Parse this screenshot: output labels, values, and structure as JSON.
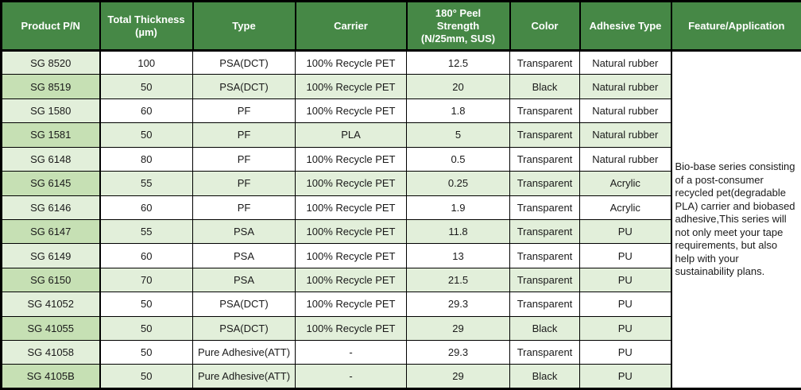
{
  "colors": {
    "header_bg": "#468846",
    "header_text": "#ffffff",
    "row_stripe_green": "#e2efda",
    "pn_column_light_green": "#e2efda",
    "pn_column_dark_green": "#c6e0b4",
    "border": "#000000",
    "body_bg": "#ffffff"
  },
  "table": {
    "columns": [
      {
        "key": "pn",
        "label": "Product P/N"
      },
      {
        "key": "thickness",
        "label": "Total Thickness\n(µm)"
      },
      {
        "key": "type",
        "label": "Type"
      },
      {
        "key": "carrier",
        "label": "Carrier"
      },
      {
        "key": "peel",
        "label": "180° Peel\nStrength\n(N/25mm, SUS)"
      },
      {
        "key": "color",
        "label": "Color"
      },
      {
        "key": "adhesive",
        "label": "Adhesive Type"
      },
      {
        "key": "feature",
        "label": "Feature/Application"
      }
    ],
    "rows": [
      {
        "pn": "SG 8520",
        "thickness": "100",
        "type": "PSA(DCT)",
        "carrier": "100% Recycle PET",
        "peel": "12.5",
        "color": "Transparent",
        "adhesive": "Natural rubber"
      },
      {
        "pn": "SG 8519",
        "thickness": "50",
        "type": "PSA(DCT)",
        "carrier": "100% Recycle PET",
        "peel": "20",
        "color": "Black",
        "adhesive": "Natural rubber"
      },
      {
        "pn": "SG 1580",
        "thickness": "60",
        "type": "PF",
        "carrier": "100% Recycle PET",
        "peel": "1.8",
        "color": "Transparent",
        "adhesive": "Natural rubber"
      },
      {
        "pn": "SG 1581",
        "thickness": "50",
        "type": "PF",
        "carrier": "PLA",
        "peel": "5",
        "color": "Transparent",
        "adhesive": "Natural rubber"
      },
      {
        "pn": "SG 6148",
        "thickness": "80",
        "type": "PF",
        "carrier": "100% Recycle PET",
        "peel": "0.5",
        "color": "Transparent",
        "adhesive": "Natural rubber"
      },
      {
        "pn": "SG 6145",
        "thickness": "55",
        "type": "PF",
        "carrier": "100% Recycle PET",
        "peel": "0.25",
        "color": "Transparent",
        "adhesive": "Acrylic"
      },
      {
        "pn": "SG 6146",
        "thickness": "60",
        "type": "PF",
        "carrier": "100% Recycle PET",
        "peel": "1.9",
        "color": "Transparent",
        "adhesive": "Acrylic"
      },
      {
        "pn": "SG 6147",
        "thickness": "55",
        "type": "PSA",
        "carrier": "100% Recycle PET",
        "peel": "11.8",
        "color": "Transparent",
        "adhesive": "PU"
      },
      {
        "pn": "SG 6149",
        "thickness": "60",
        "type": "PSA",
        "carrier": "100% Recycle PET",
        "peel": "13",
        "color": "Transparent",
        "adhesive": "PU"
      },
      {
        "pn": "SG 6150",
        "thickness": "70",
        "type": "PSA",
        "carrier": "100% Recycle PET",
        "peel": "21.5",
        "color": "Transparent",
        "adhesive": "PU"
      },
      {
        "pn": "SG 41052",
        "thickness": "50",
        "type": "PSA(DCT)",
        "carrier": "100% Recycle PET",
        "peel": "29.3",
        "color": "Transparent",
        "adhesive": "PU"
      },
      {
        "pn": "SG 41055",
        "thickness": "50",
        "type": "PSA(DCT)",
        "carrier": "100% Recycle PET",
        "peel": "29",
        "color": "Black",
        "adhesive": "PU"
      },
      {
        "pn": "SG 41058",
        "thickness": "50",
        "type": "Pure Adhesive(ATT)",
        "carrier": "-",
        "peel": "29.3",
        "color": "Transparent",
        "adhesive": "PU"
      },
      {
        "pn": "SG 4105B",
        "thickness": "50",
        "type": "Pure Adhesive(ATT)",
        "carrier": "-",
        "peel": "29",
        "color": "Black",
        "adhesive": "PU"
      }
    ],
    "feature_text": "Bio-base series consisting of a post-consumer recycled pet(degradable PLA) carrier and  biobased adhesive,This series will not only meet your tape requirements, but also help with your sustainability plans."
  }
}
